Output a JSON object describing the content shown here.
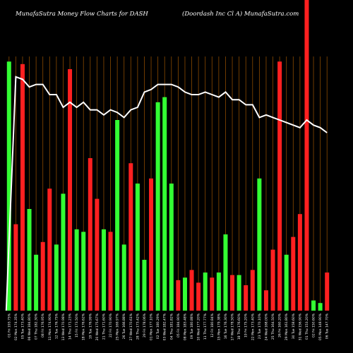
{
  "header": {
    "title": "MunafaSutra  Money Flow  Charts for DASH",
    "company": "(Doordash Inc Cl A) MunafaSutra.com"
  },
  "colors": {
    "background": "#000000",
    "up": "#33ff33",
    "down": "#ff2020",
    "line": "#ffffff",
    "grid": "#8a4a00"
  },
  "chart_data": {
    "type": "bar",
    "title": "MunafaSutra  Money Flow  Charts for DASH",
    "subtitle": "(Doordash Inc Cl A) MunafaSutra.com",
    "ylim": [
      0,
      100
    ],
    "grid": "vertical",
    "categories": [
      "01 Fri 193.75%",
      "02 Mon 174.35%",
      "05 Tue 173.40%",
      "06 Wed 184.80%",
      "07 Thu 182.30%",
      "08 Fri 176.95%",
      "11 Mon 174.90%",
      "12 Tue 176.75%",
      "13 Wed 170.98%",
      "14 Thu 171.23%",
      "15 Fri 173.50%",
      "18 Mon 176.62%",
      "19 Tue 176.99%",
      "20 Wed 175.67%",
      "21 Thu 171.60%",
      "22 Fri 170.90%",
      "25 Mon 169.97%",
      "26 Tue 166.88%",
      "27 Wed 170.61%",
      "28 Thu 173.42%",
      "29 Fri 178.06%",
      "01 Mon 177.10%",
      "02 Tue 180.29%",
      "03 Wed 182.47%",
      "04 Thu 181.82%",
      "05 Fri 184.90%",
      "08 Mon 183.48%",
      "09 Tue 180.88%",
      "10 Wed 177.20%",
      "11 Thu 177.77%",
      "12 Fri 180.84%",
      "15 Mon 179.38%",
      "16 Tue 176.30%",
      "17 Wed 178.50%",
      "18 Thu 176.60%",
      "19 Fri 175.20%",
      "22 Mon 173.40%",
      "23 Tue 170.10%",
      "24 Wed 168.00%",
      "25 Thu 164.50%",
      "26 Fri 160.20%",
      "29 Mon 161.80%",
      "30 Tue 158.60%",
      "31 Wed 156.90%",
      "01 Thu 153.20%",
      "02 Fri 150.60%",
      "05 Mon 148.90%",
      "06 Tue 147.70%"
    ],
    "series": [
      {
        "values": [
          98,
          34,
          97,
          40,
          22,
          27,
          48,
          26,
          46,
          95,
          32,
          31,
          60,
          44,
          32,
          31,
          75,
          26,
          58,
          50,
          20,
          52,
          82,
          84,
          50,
          12,
          13,
          16,
          11,
          15,
          13,
          15,
          30,
          14,
          14,
          10,
          16,
          52,
          8,
          24,
          98,
          22,
          29,
          38,
          100,
          4,
          3,
          15
        ],
        "colors": [
          "g",
          "r",
          "r",
          "g",
          "g",
          "r",
          "r",
          "g",
          "g",
          "r",
          "g",
          "g",
          "r",
          "r",
          "g",
          "r",
          "g",
          "g",
          "r",
          "g",
          "g",
          "r",
          "g",
          "g",
          "g",
          "r",
          "g",
          "r",
          "r",
          "g",
          "r",
          "g",
          "g",
          "r",
          "g",
          "r",
          "r",
          "g",
          "r",
          "r",
          "r",
          "g",
          "r",
          "r",
          "r",
          "g",
          "g",
          "r"
        ]
      },
      {
        "type": "line",
        "values": [
          0,
          92,
          91,
          88,
          89,
          89,
          85,
          85,
          80,
          82,
          80,
          82,
          79,
          79,
          77,
          79,
          78,
          76,
          79,
          80,
          86,
          87,
          89,
          89,
          89,
          88,
          86,
          85,
          85,
          86,
          85,
          84,
          86,
          83,
          83,
          81,
          81,
          76,
          77,
          76,
          75,
          74,
          73,
          72,
          75,
          73,
          72,
          70
        ]
      }
    ]
  }
}
